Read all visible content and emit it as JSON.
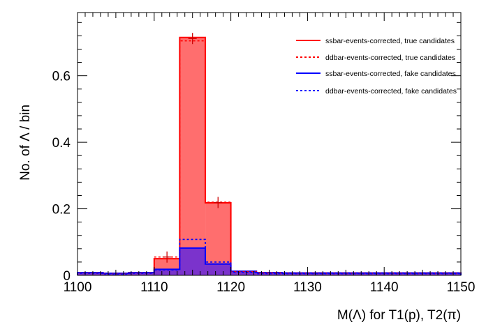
{
  "chart_data": {
    "type": "bar",
    "subtype": "stacked-histogram-with-overlays",
    "xlabel": "M(Λ) for T1(p), T2(π)",
    "ylabel": "No. of Λ / bin",
    "xlim": [
      1100,
      1150
    ],
    "ylim": [
      0,
      0.79
    ],
    "x_ticks": [
      1100,
      1110,
      1120,
      1130,
      1140,
      1150
    ],
    "x_tick_labels": [
      "1100",
      "1110",
      "1120",
      "1130",
      "1140",
      "1150"
    ],
    "y_ticks": [
      0,
      0.2,
      0.4,
      0.6
    ],
    "y_tick_labels": [
      "0",
      "0.2",
      "0.4",
      "0.6"
    ],
    "bin_edges": [
      1100,
      1103.33,
      1106.67,
      1110,
      1113.33,
      1116.67,
      1120,
      1123.33,
      1126.67,
      1130,
      1133.33,
      1136.67,
      1140,
      1143.33,
      1146.67,
      1150
    ],
    "legend_position": "top-right",
    "series": [
      {
        "name": "ssbar-events-corrected, true candidates",
        "color": "#ff0000",
        "fill": "#ff6e6e",
        "style": "solid",
        "values": [
          0.008,
          0.006,
          0.008,
          0.05,
          0.715,
          0.218,
          0.012,
          0.008,
          0.007,
          0.007,
          0.007,
          0.007,
          0.007,
          0.007,
          0.007
        ]
      },
      {
        "name": "ddbar-events-corrected, true candidates",
        "color": "#ff0000",
        "style": "dashed",
        "values": [
          0.007,
          0.005,
          0.007,
          0.055,
          0.705,
          0.22,
          0.011,
          0.007,
          0.006,
          0.006,
          0.006,
          0.006,
          0.006,
          0.006,
          0.006
        ]
      },
      {
        "name": "ssbar-events-corrected, fake candidates",
        "color": "#0000ff",
        "fill": "#7b33cc",
        "style": "solid",
        "values": [
          0.008,
          0.006,
          0.008,
          0.018,
          0.082,
          0.034,
          0.012,
          0.008,
          0.007,
          0.007,
          0.007,
          0.007,
          0.007,
          0.007,
          0.007
        ]
      },
      {
        "name": "ddbar-events-corrected, fake candidates",
        "color": "#0000ff",
        "style": "dashed",
        "values": [
          0.006,
          0.004,
          0.006,
          0.016,
          0.108,
          0.04,
          0.009,
          0.005,
          0.005,
          0.005,
          0.005,
          0.005,
          0.005,
          0.005,
          0.005
        ]
      }
    ],
    "error_markers": [
      {
        "x": 1111.67,
        "y": 0.055
      },
      {
        "x": 1115.0,
        "y": 0.712
      },
      {
        "x": 1118.33,
        "y": 0.219
      }
    ]
  }
}
